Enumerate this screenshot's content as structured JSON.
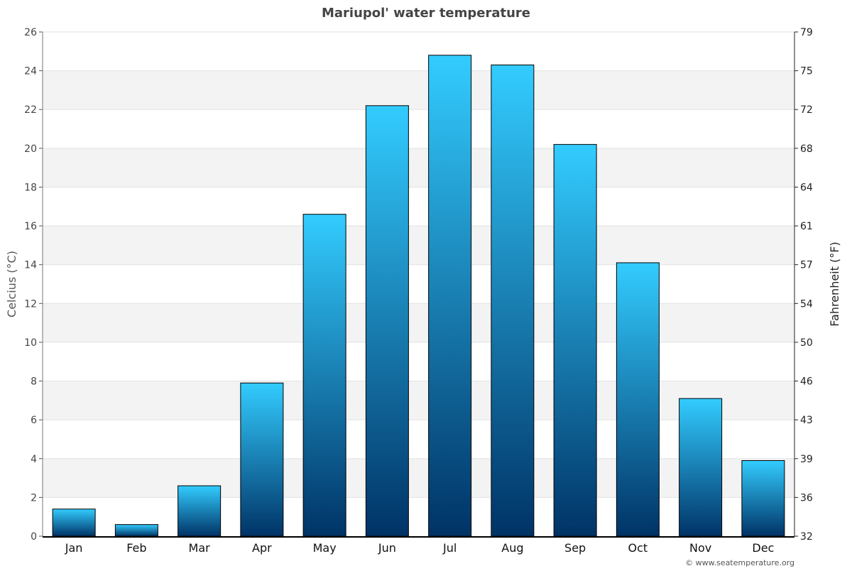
{
  "chart_data": {
    "type": "bar",
    "title": "Mariupol' water temperature",
    "ylabel": "Celcius (°C)",
    "y2label": "Fahrenheit (°F)",
    "xlabel": "",
    "categories": [
      "Jan",
      "Feb",
      "Mar",
      "Apr",
      "May",
      "Jun",
      "Jul",
      "Aug",
      "Sep",
      "Oct",
      "Nov",
      "Dec"
    ],
    "values": [
      1.4,
      0.6,
      2.6,
      7.9,
      16.6,
      22.2,
      24.8,
      24.3,
      20.2,
      14.1,
      7.1,
      3.9
    ],
    "ylim": [
      0,
      26
    ],
    "yticks": [
      0,
      2,
      4,
      6,
      8,
      10,
      12,
      14,
      16,
      18,
      20,
      22,
      24,
      26
    ],
    "y2ticks": [
      "32",
      "36",
      "39",
      "43",
      "46",
      "50",
      "54",
      "57",
      "61",
      "64",
      "68",
      "72",
      "75",
      "79"
    ],
    "grid": true,
    "colors": {
      "bar_top": "#33ccff",
      "bar_bottom": "#003366",
      "band": "#f3f3f3"
    }
  },
  "footer": {
    "credit": "© www.seatemperature.org"
  }
}
